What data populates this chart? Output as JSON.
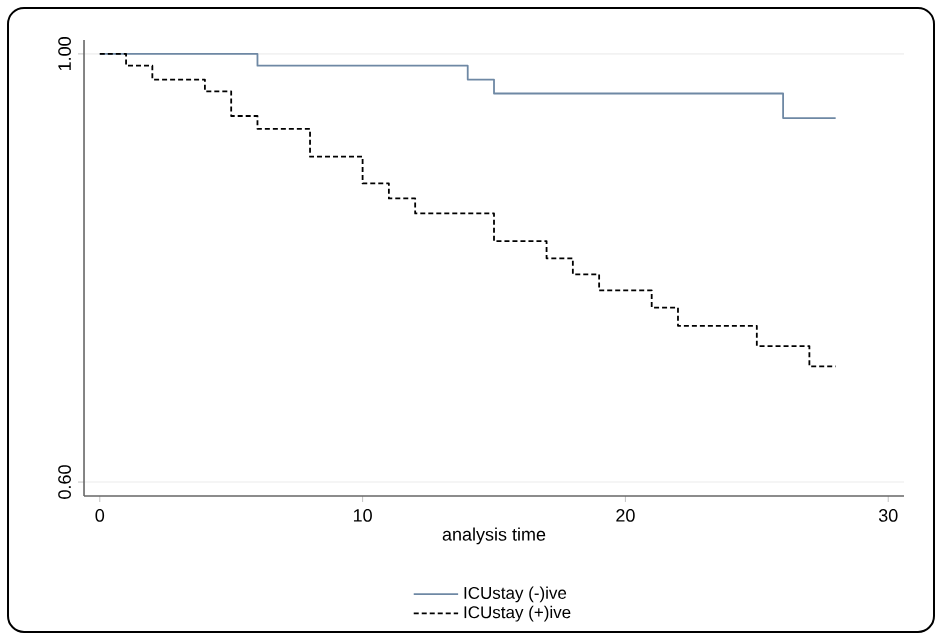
{
  "chart_data": {
    "type": "step",
    "xlabel": "analysis time",
    "xlim": [
      -0.6,
      30.6
    ],
    "ylim": [
      0.587,
      1.013
    ],
    "xticks": [
      0,
      10,
      20,
      30
    ],
    "yticks": [
      {
        "value": 0.6,
        "label": "0.60"
      },
      {
        "value": 1.0,
        "label": "1.00"
      }
    ],
    "grid": "y",
    "legend": "bottom",
    "series": [
      {
        "name": "ICUstay  (-)ive",
        "color": "#6e88a4",
        "line_style": "solid",
        "x": [
          0,
          6,
          14,
          15,
          26,
          28
        ],
        "values": [
          1.0,
          0.989,
          0.976,
          0.963,
          0.94,
          0.94
        ]
      },
      {
        "name": "ICUstay (+)ive",
        "color": "#000000",
        "line_style": "dashed",
        "x": [
          0,
          1,
          2,
          4,
          5,
          6,
          8,
          10,
          11,
          12,
          15,
          17,
          18,
          19,
          21,
          22,
          25,
          27,
          28
        ],
        "values": [
          1.0,
          0.989,
          0.976,
          0.965,
          0.942,
          0.93,
          0.904,
          0.879,
          0.865,
          0.851,
          0.825,
          0.809,
          0.794,
          0.779,
          0.763,
          0.746,
          0.727,
          0.708,
          0.708
        ]
      }
    ]
  }
}
